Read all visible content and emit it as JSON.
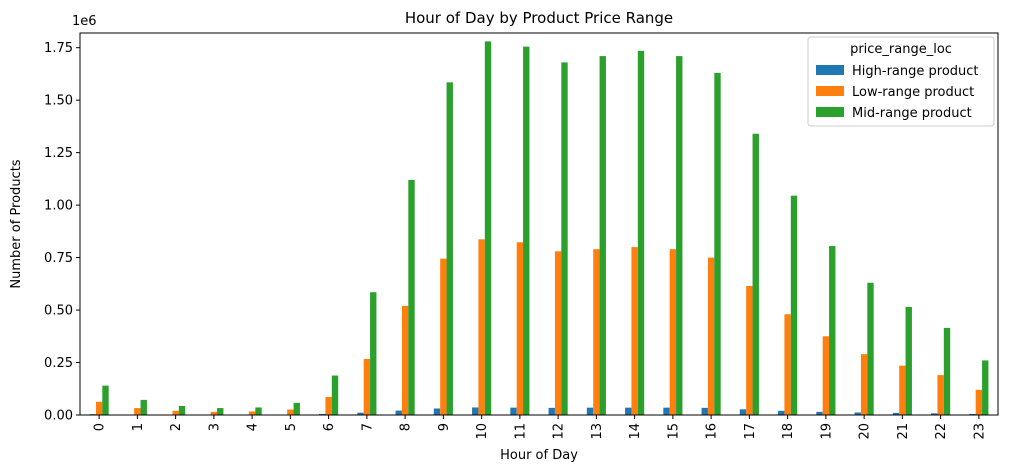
{
  "chart_data": {
    "type": "bar",
    "title": "Hour of Day by Product Price Range",
    "xlabel": "Hour of Day",
    "ylabel": "Number of Products",
    "y_offset_label": "1e6",
    "ylim": [
      0,
      1.82
    ],
    "yticks": [
      "0.00",
      "0.25",
      "0.50",
      "0.75",
      "1.00",
      "1.25",
      "1.50",
      "1.75"
    ],
    "categories": [
      "0",
      "1",
      "2",
      "3",
      "4",
      "5",
      "6",
      "7",
      "8",
      "9",
      "10",
      "11",
      "12",
      "13",
      "14",
      "15",
      "16",
      "17",
      "18",
      "19",
      "20",
      "21",
      "22",
      "23"
    ],
    "legend": {
      "title": "price_range_loc",
      "position": "top-right"
    },
    "grid": false,
    "series": [
      {
        "name": "High-range product",
        "color": "#1f77b4",
        "values": [
          0.004,
          0.002,
          0.001,
          0.001,
          0.001,
          0.002,
          0.005,
          0.011,
          0.021,
          0.031,
          0.036,
          0.035,
          0.034,
          0.035,
          0.035,
          0.035,
          0.034,
          0.027,
          0.02,
          0.015,
          0.012,
          0.01,
          0.008,
          0.005
        ]
      },
      {
        "name": "Low-range product",
        "color": "#ff7f0e",
        "values": [
          0.063,
          0.033,
          0.02,
          0.015,
          0.017,
          0.026,
          0.086,
          0.267,
          0.52,
          0.745,
          0.837,
          0.823,
          0.78,
          0.79,
          0.8,
          0.79,
          0.75,
          0.615,
          0.48,
          0.375,
          0.29,
          0.235,
          0.19,
          0.12
        ]
      },
      {
        "name": "Mid-range product",
        "color": "#2ca02c",
        "values": [
          0.14,
          0.072,
          0.043,
          0.033,
          0.036,
          0.058,
          0.188,
          0.585,
          1.12,
          1.585,
          1.78,
          1.755,
          1.68,
          1.71,
          1.735,
          1.71,
          1.63,
          1.34,
          1.045,
          0.805,
          0.63,
          0.515,
          0.415,
          0.26
        ]
      }
    ]
  }
}
